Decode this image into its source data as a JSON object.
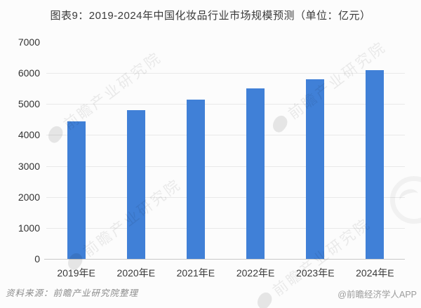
{
  "title": "图表9：2019-2024年中国化妆品行业市场规模预测（单位：亿元）",
  "chart_data": {
    "type": "bar",
    "categories": [
      "2019年E",
      "2020年E",
      "2021年E",
      "2022年E",
      "2023年E",
      "2024年E"
    ],
    "values": [
      4450,
      4800,
      5150,
      5500,
      5800,
      6100
    ],
    "title": "图表9：2019-2024年中国化妆品行业市场规模预测（单位：亿元）",
    "xlabel": "",
    "ylabel": "",
    "unit": "亿元",
    "ylim": [
      0,
      7000
    ],
    "yticks": [
      0,
      1000,
      2000,
      3000,
      4000,
      5000,
      6000,
      7000
    ],
    "grid": true,
    "legend": false,
    "bar_color": "#4080d7"
  },
  "watermark": {
    "text": "前瞻产业研究院",
    "color": "rgba(0,0,0,0.075)"
  },
  "footer": {
    "source": "资料来源：前瞻产业研究院整理",
    "credit": "@前瞻经济学人APP"
  },
  "colors": {
    "bar": "#4080d7",
    "gridline": "#e9e9e9",
    "axis": "#c9c9c9",
    "text": "#333333",
    "muted": "#9c9c9c",
    "background": "#fcfcfc"
  }
}
